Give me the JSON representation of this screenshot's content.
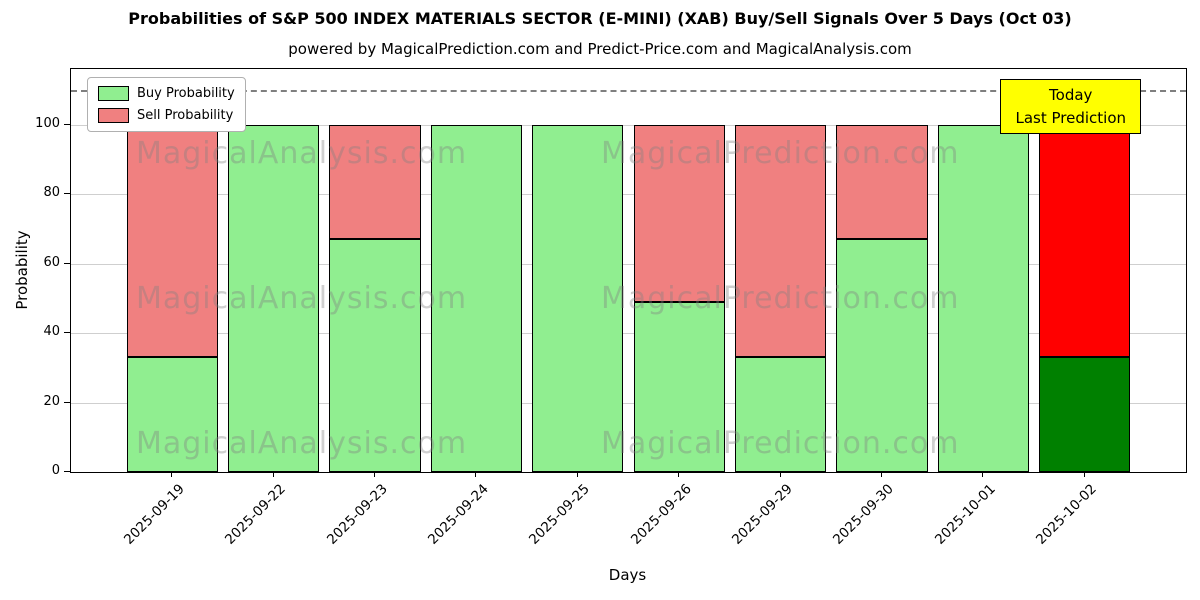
{
  "chart_data": {
    "type": "bar",
    "stacked": true,
    "title": "Probabilities of S&P 500 INDEX MATERIALS SECTOR (E-MINI) (XAB) Buy/Sell Signals Over 5 Days (Oct 03)",
    "subtitle": "powered by MagicalPrediction.com and Predict-Price.com and MagicalAnalysis.com",
    "xlabel": "Days",
    "ylabel": "Probability",
    "ylim": [
      0,
      116
    ],
    "yticks": [
      0,
      20,
      40,
      60,
      80,
      100
    ],
    "grid": true,
    "dashed_line_y": 110,
    "categories": [
      "2025-09-19",
      "2025-09-22",
      "2025-09-23",
      "2025-09-24",
      "2025-09-25",
      "2025-09-26",
      "2025-09-29",
      "2025-09-30",
      "2025-10-01",
      "2025-10-02"
    ],
    "series": [
      {
        "name": "Buy Probability",
        "color": "#90ee90",
        "values": [
          33,
          100,
          67,
          100,
          100,
          49,
          33,
          67,
          100,
          33
        ]
      },
      {
        "name": "Sell Probability",
        "color": "#f08080",
        "values": [
          67,
          0,
          33,
          0,
          0,
          51,
          67,
          33,
          0,
          67
        ]
      }
    ],
    "highlight_last": {
      "buy_color": "#008000",
      "sell_color": "#ff0000"
    },
    "legend_position": "upper-left",
    "annotation": {
      "line1": "Today",
      "line2": "Last Prediction",
      "bg_color": "#ffff00"
    },
    "watermarks": {
      "left": "MagicalAnalysis.com",
      "right": "MagicalPrediction.com"
    }
  }
}
